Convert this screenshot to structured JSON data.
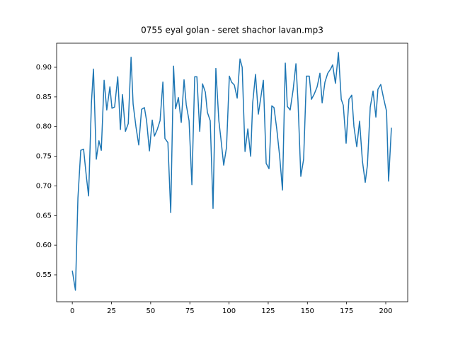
{
  "chart_data": {
    "type": "line",
    "title": "0755 eyal golan - seret shachor lavan.mp3",
    "x": [
      0,
      2,
      3.6,
      5.4,
      7.2,
      9,
      10.4,
      12.2,
      13.5,
      15.3,
      17,
      18.5,
      20.3,
      22,
      24,
      25.3,
      27,
      29,
      30.7,
      32,
      33.9,
      35.7,
      37.5,
      38.8,
      40.6,
      42.4,
      44.2,
      46,
      47.4,
      49.2,
      51,
      52.4,
      54.2,
      56,
      57.8,
      59.1,
      61,
      62.8,
      64.6,
      65.9,
      67.7,
      69.5,
      71.3,
      72.7,
      74.5,
      76.3,
      78.1,
      79.5,
      81.3,
      83.1,
      84.9,
      86.2,
      88,
      89.8,
      91.6,
      93.5,
      94.8,
      96.6,
      98.4,
      100.2,
      101.6,
      103.4,
      105.2,
      107,
      108.4,
      110.2,
      112,
      113.8,
      115.1,
      116.9,
      118.7,
      120.5,
      121.9,
      123.7,
      125.5,
      127.3,
      128.7,
      130.5,
      132.3,
      134.1,
      135.9,
      137.2,
      139,
      140.9,
      142.7,
      144,
      145.8,
      147.6,
      149.4,
      151.2,
      152.6,
      154.4,
      156.2,
      158,
      159.4,
      161.2,
      163,
      164.8,
      166.1,
      167.9,
      169.8,
      171.6,
      172.9,
      174.7,
      176.5,
      178.3,
      179.7,
      181.5,
      183.3,
      185.1,
      186.9,
      188.3,
      190.1,
      191.9,
      193.7,
      195,
      196.8,
      198.6,
      200.5,
      201.8,
      203.6
    ],
    "series": [
      {
        "color": "#1f77b4",
        "values": [
          0.557,
          0.524,
          0.68,
          0.76,
          0.762,
          0.715,
          0.683,
          0.84,
          0.897,
          0.745,
          0.776,
          0.76,
          0.878,
          0.828,
          0.867,
          0.831,
          0.833,
          0.884,
          0.795,
          0.854,
          0.792,
          0.805,
          0.917,
          0.838,
          0.8,
          0.769,
          0.829,
          0.832,
          0.81,
          0.759,
          0.811,
          0.784,
          0.795,
          0.81,
          0.875,
          0.78,
          0.773,
          0.655,
          0.902,
          0.83,
          0.849,
          0.807,
          0.879,
          0.837,
          0.81,
          0.702,
          0.884,
          0.884,
          0.792,
          0.872,
          0.858,
          0.824,
          0.81,
          0.662,
          0.898,
          0.81,
          0.78,
          0.735,
          0.765,
          0.885,
          0.875,
          0.87,
          0.848,
          0.914,
          0.9,
          0.758,
          0.796,
          0.75,
          0.84,
          0.888,
          0.821,
          0.853,
          0.878,
          0.738,
          0.729,
          0.835,
          0.832,
          0.795,
          0.75,
          0.693,
          0.907,
          0.834,
          0.828,
          0.862,
          0.906,
          0.843,
          0.716,
          0.745,
          0.885,
          0.885,
          0.846,
          0.855,
          0.867,
          0.89,
          0.84,
          0.875,
          0.89,
          0.897,
          0.904,
          0.873,
          0.925,
          0.846,
          0.836,
          0.772,
          0.846,
          0.853,
          0.8,
          0.766,
          0.809,
          0.742,
          0.706,
          0.735,
          0.833,
          0.86,
          0.816,
          0.863,
          0.871,
          0.848,
          0.826,
          0.708,
          0.798
        ]
      }
    ],
    "xlim": [
      -10,
      214
    ],
    "xticks": [
      0,
      25,
      50,
      75,
      100,
      125,
      150,
      175,
      200
    ],
    "ylim": [
      0.5046,
      0.9406
    ],
    "yticks": [
      0.55,
      {
        "value": 0.6,
        "label": "0.60"
      },
      0.65,
      {
        "value": 0.7,
        "label": "0.70"
      },
      0.75,
      {
        "value": 0.8,
        "label": "0.80"
      },
      0.85,
      {
        "value": 0.9,
        "label": "0.90"
      }
    ]
  }
}
